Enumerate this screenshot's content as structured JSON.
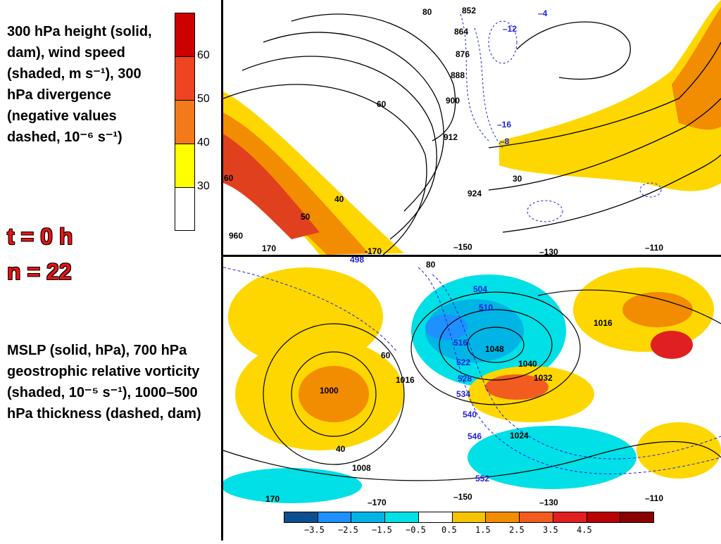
{
  "top_panel": {
    "caption": "300 hPa height (solid, dam), wind speed (shaded, m s⁻¹), 300 hPa divergence (negative values dashed, 10⁻⁶ s⁻¹)",
    "colorbar": {
      "colors": [
        "#cc0000",
        "#ee4422",
        "#f27a1a",
        "#ffff00",
        "#ffffff"
      ],
      "ticks": [
        "60",
        "50",
        "40",
        "30"
      ]
    },
    "height_labels": [
      "852",
      "864",
      "876",
      "888",
      "900",
      "912",
      "924",
      "960",
      "80",
      "60",
      "170",
      "-170",
      "–150",
      "–130",
      "–110"
    ],
    "speed_labels": [
      "30",
      "40",
      "50",
      "60"
    ],
    "divergence_labels": [
      "–4",
      "–12",
      "–16",
      "–8"
    ]
  },
  "timeline": {
    "t": "t = 0 h",
    "n": "n = 22"
  },
  "bottom_panel": {
    "caption": "MSLP (solid, hPa), 700 hPa geostrophic relative vorticity (shaded, 10⁻⁵ s⁻¹), 1000–500 hPa thickness (dashed, dam)",
    "pressure_labels": [
      "1000",
      "1008",
      "1016",
      "1024",
      "1032",
      "1040",
      "1048",
      "1016"
    ],
    "thickness_labels": [
      "498",
      "504",
      "510",
      "516",
      "522",
      "528",
      "534",
      "540",
      "546",
      "552"
    ],
    "other_labels": [
      "80",
      "60",
      "40",
      "170",
      "–170",
      "–150",
      "–130",
      "–110"
    ],
    "colorbar": {
      "colors": [
        "#0a4f8f",
        "#1e90ff",
        "#00b4e6",
        "#00e0e6",
        "#ffffff",
        "#f5c400",
        "#f28c00",
        "#f25c1e",
        "#e02020",
        "#bb0000",
        "#880000"
      ],
      "ticks": [
        "−3.5",
        "−2.5",
        "−1.5",
        "−0.5",
        "0.5",
        "1.5",
        "2.5",
        "3.5",
        "4.5"
      ]
    }
  }
}
